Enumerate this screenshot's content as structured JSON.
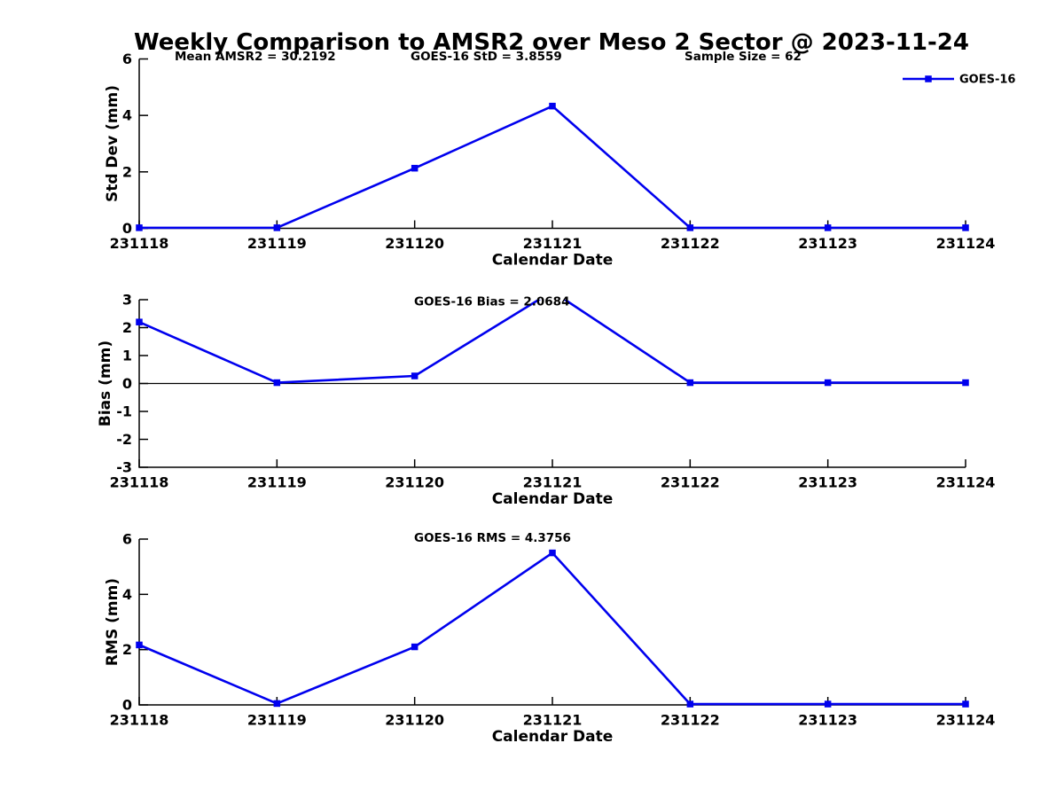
{
  "title": "Weekly Comparison to AMSR2 over Meso 2 Sector @ 2023-11-24",
  "colors": {
    "series": "#0000EE",
    "axes": "#000000",
    "text": "#000000",
    "background": "#FFFFFF"
  },
  "legend": {
    "label": "GOES-16",
    "position": "upper right",
    "marker": "square"
  },
  "chart_data": [
    {
      "type": "line",
      "panel": "std-dev",
      "categories": [
        "231118",
        "231119",
        "231120",
        "231121",
        "231122",
        "231123",
        "231124"
      ],
      "series": [
        {
          "name": "GOES-16",
          "marker": "square",
          "values": [
            0.02,
            0.02,
            2.13,
            4.33,
            0.02,
            0.02,
            0.02
          ]
        }
      ],
      "xlabel": "Calendar Date",
      "ylabel": "Std Dev (mm)",
      "ylim": [
        0,
        6
      ],
      "yticks": [
        0,
        2,
        4,
        6
      ],
      "grid": false,
      "annotations": [
        "Mean AMSR2 = 30.2192",
        "GOES-16 StD = 3.8559",
        "Sample Size = 62"
      ]
    },
    {
      "type": "line",
      "panel": "bias",
      "categories": [
        "231118",
        "231119",
        "231120",
        "231121",
        "231122",
        "231123",
        "231124"
      ],
      "series": [
        {
          "name": "GOES-16",
          "marker": "square",
          "values": [
            2.2,
            0.03,
            0.27,
            3.3,
            0.03,
            0.03,
            0.03
          ]
        }
      ],
      "xlabel": "Calendar Date",
      "ylabel": "Bias (mm)",
      "ylim": [
        -3,
        3
      ],
      "yticks": [
        -3,
        -2,
        -1,
        0,
        1,
        2,
        3
      ],
      "grid": false,
      "zero_line": true,
      "annotation": "GOES-16 Bias  = 2.0684",
      "clipped_points": [
        "231121"
      ]
    },
    {
      "type": "line",
      "panel": "rms",
      "categories": [
        "231118",
        "231119",
        "231120",
        "231121",
        "231122",
        "231123",
        "231124"
      ],
      "series": [
        {
          "name": "GOES-16",
          "marker": "square",
          "values": [
            2.17,
            0.05,
            2.1,
            5.5,
            0.03,
            0.03,
            0.03
          ]
        }
      ],
      "xlabel": "Calendar Date",
      "ylabel": "RMS (mm)",
      "ylim": [
        0,
        6
      ],
      "yticks": [
        0,
        2,
        4,
        6
      ],
      "grid": false,
      "annotation": "GOES-16 RMS = 4.3756"
    }
  ]
}
